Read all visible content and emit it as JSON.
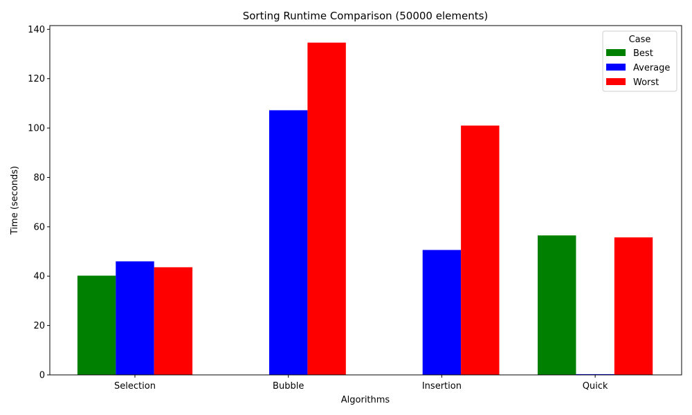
{
  "chart_data": {
    "type": "bar",
    "title": "Sorting Runtime Comparison (50000 elements)",
    "xlabel": "Algorithms",
    "ylabel": "Time (seconds)",
    "categories": [
      "Selection",
      "Bubble",
      "Insertion",
      "Quick"
    ],
    "series": [
      {
        "name": "Best",
        "color": "#008000",
        "values": [
          40.2,
          0,
          0,
          56.5
        ]
      },
      {
        "name": "Average",
        "color": "#0000ff",
        "values": [
          46.0,
          107.2,
          50.6,
          0.3
        ]
      },
      {
        "name": "Worst",
        "color": "#ff0000",
        "values": [
          43.6,
          134.6,
          101.0,
          55.7
        ]
      }
    ],
    "ylim": [
      0,
      141.5
    ],
    "yticks": [
      0,
      20,
      40,
      60,
      80,
      100,
      120,
      140
    ],
    "legend": {
      "title": "Case",
      "placement": "top-right"
    },
    "grid": false
  }
}
